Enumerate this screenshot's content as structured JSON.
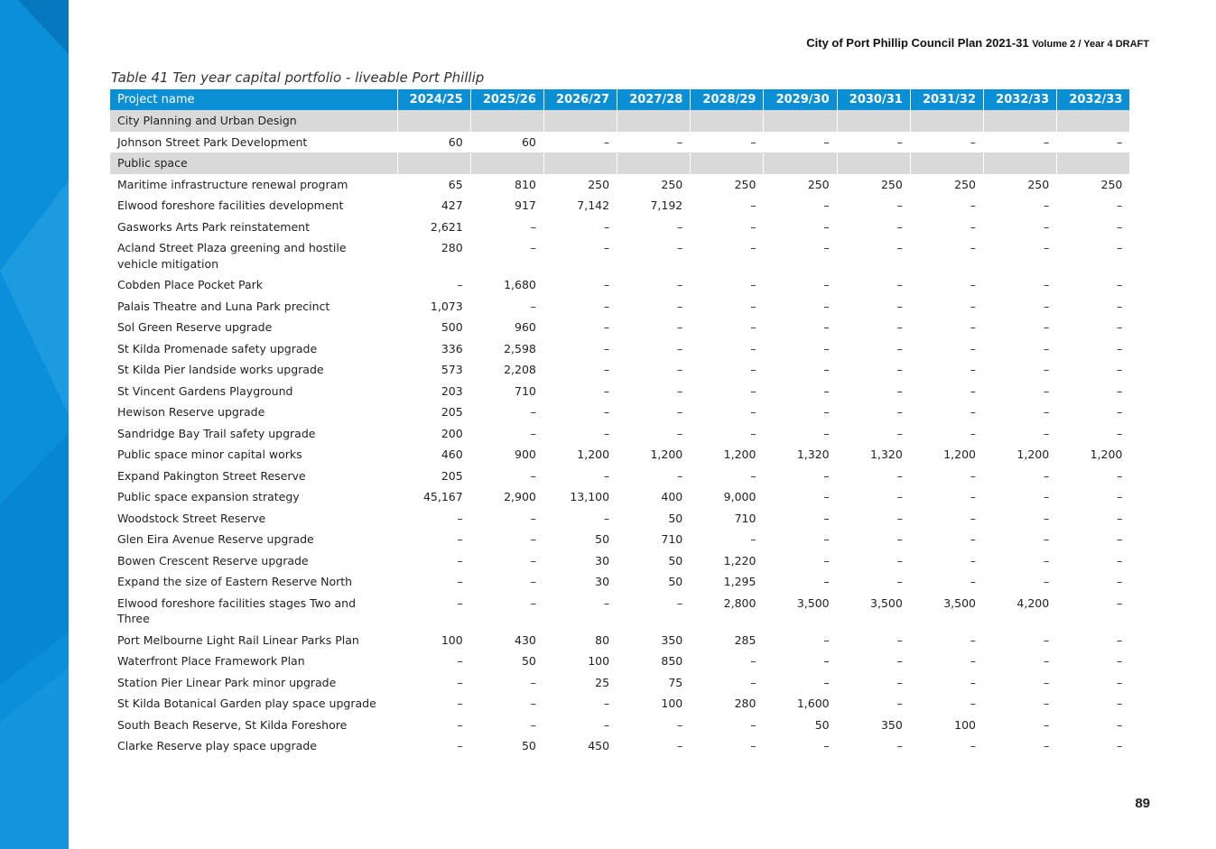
{
  "header": {
    "title": "City of Port Phillip Council Plan 2021-31",
    "subtitle": "Volume 2 / Year 4 DRAFT"
  },
  "table": {
    "caption": "Table 41 Ten year capital portfolio - liveable Port Phillip",
    "columns": [
      "Project name",
      "2024/25",
      "2025/26",
      "2026/27",
      "2027/28",
      "2028/29",
      "2029/30",
      "2030/31",
      "2031/32",
      "2032/33",
      "2032/33"
    ],
    "rows": [
      [
        "City Planning and Urban Design"
      ],
      [
        "Johnson Street Park Development",
        "60",
        "60",
        "–",
        "–",
        "–",
        "–",
        "–",
        "–",
        "–",
        "–"
      ],
      [
        "Public space"
      ],
      [
        "Maritime infrastructure renewal program",
        "65",
        "810",
        "250",
        "250",
        "250",
        "250",
        "250",
        "250",
        "250",
        "250"
      ],
      [
        "Elwood foreshore facilities development",
        "427",
        "917",
        "7,142",
        "7,192",
        "–",
        "–",
        "–",
        "–",
        "–",
        "–"
      ],
      [
        "Gasworks Arts Park reinstatement",
        "2,621",
        "–",
        "–",
        "–",
        "–",
        "–",
        "–",
        "–",
        "–",
        "–"
      ],
      [
        "Acland Street Plaza greening and hostile vehicle mitigation",
        "280",
        "–",
        "–",
        "–",
        "–",
        "–",
        "–",
        "–",
        "–",
        "–"
      ],
      [
        "Cobden Place Pocket Park",
        "–",
        "1,680",
        "–",
        "–",
        "–",
        "–",
        "–",
        "–",
        "–",
        "–"
      ],
      [
        "Palais Theatre and Luna Park precinct",
        "1,073",
        "–",
        "–",
        "–",
        "–",
        "–",
        "–",
        "–",
        "–",
        "–"
      ],
      [
        "Sol Green Reserve upgrade",
        "500",
        "960",
        "–",
        "–",
        "–",
        "–",
        "–",
        "–",
        "–",
        "–"
      ],
      [
        "St Kilda Promenade safety upgrade",
        "336",
        "2,598",
        "–",
        "–",
        "–",
        "–",
        "–",
        "–",
        "–",
        "–"
      ],
      [
        "St Kilda Pier landside works upgrade",
        "573",
        "2,208",
        "–",
        "–",
        "–",
        "–",
        "–",
        "–",
        "–",
        "–"
      ],
      [
        "St Vincent Gardens Playground",
        "203",
        "710",
        "–",
        "–",
        "–",
        "–",
        "–",
        "–",
        "–",
        "–"
      ],
      [
        "Hewison Reserve upgrade",
        "205",
        "–",
        "–",
        "–",
        "–",
        "–",
        "–",
        "–",
        "–",
        "–"
      ],
      [
        "Sandridge Bay Trail safety upgrade",
        "200",
        "–",
        "–",
        "–",
        "–",
        "–",
        "–",
        "–",
        "–",
        "–"
      ],
      [
        "Public space minor capital works",
        "460",
        "900",
        "1,200",
        "1,200",
        "1,200",
        "1,320",
        "1,320",
        "1,200",
        "1,200",
        "1,200"
      ],
      [
        "Expand Pakington Street Reserve",
        "205",
        "–",
        "–",
        "–",
        "–",
        "–",
        "–",
        "–",
        "–",
        "–"
      ],
      [
        "Public space expansion strategy",
        "45,167",
        "2,900",
        "13,100",
        "400",
        "9,000",
        "–",
        "–",
        "–",
        "–",
        "–"
      ],
      [
        "Woodstock Street Reserve",
        "–",
        "–",
        "–",
        "50",
        "710",
        "–",
        "–",
        "–",
        "–",
        "–"
      ],
      [
        "Glen Eira Avenue Reserve upgrade",
        "–",
        "–",
        "50",
        "710",
        "–",
        "–",
        "–",
        "–",
        "–",
        "–"
      ],
      [
        "Bowen Crescent Reserve upgrade",
        "–",
        "–",
        "30",
        "50",
        "1,220",
        "–",
        "–",
        "–",
        "–",
        "–"
      ],
      [
        "Expand the size of Eastern Reserve North",
        "–",
        "–",
        "30",
        "50",
        "1,295",
        "–",
        "–",
        "–",
        "–",
        "–"
      ],
      [
        "Elwood foreshore facilities stages Two  and Three",
        "–",
        "–",
        "–",
        "–",
        "2,800",
        "3,500",
        "3,500",
        "3,500",
        "4,200",
        "–"
      ],
      [
        "Port Melbourne Light Rail Linear Parks Plan",
        "100",
        "430",
        "80",
        "350",
        "285",
        "–",
        "–",
        "–",
        "–",
        "–"
      ],
      [
        "Waterfront Place Framework Plan",
        "–",
        "50",
        "100",
        "850",
        "–",
        "–",
        "–",
        "–",
        "–",
        "–"
      ],
      [
        "Station Pier Linear Park minor upgrade",
        "–",
        "–",
        "25",
        "75",
        "–",
        "–",
        "–",
        "–",
        "–",
        "–"
      ],
      [
        "St Kilda Botanical Garden play space upgrade",
        "–",
        "–",
        "–",
        "100",
        "280",
        "1,600",
        "–",
        "–",
        "–",
        "–"
      ],
      [
        "South Beach Reserve, St Kilda Foreshore",
        "–",
        "–",
        "–",
        "–",
        "–",
        "50",
        "350",
        "100",
        "–",
        "–"
      ],
      [
        "Clarke Reserve play space upgrade",
        "–",
        "50",
        "450",
        "–",
        "–",
        "–",
        "–",
        "–",
        "–",
        "–"
      ]
    ]
  },
  "footer": {
    "page_number": "89"
  }
}
